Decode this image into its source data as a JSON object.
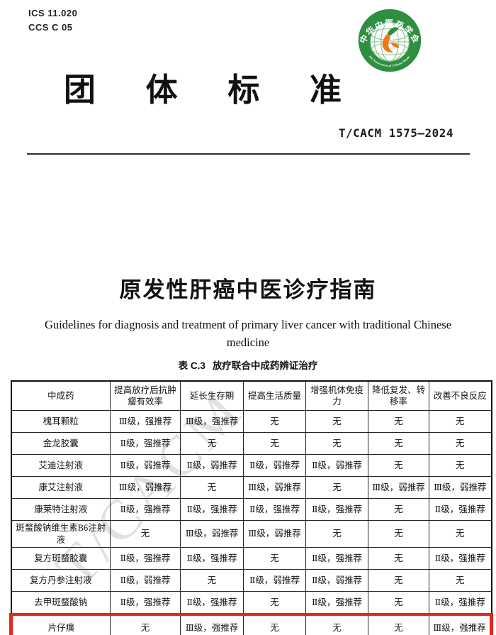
{
  "page": {
    "ics": "ICS 11.020",
    "ccs": "CCS C 05",
    "org_title_chars": [
      "团",
      "体",
      "标",
      "准"
    ],
    "standard_number": "T/CACM 1575—2024",
    "doc_title": "原发性肝癌中医诊疗指南",
    "doc_title_en_line1": "Guidelines for diagnosis and treatment of primary liver cancer with traditional Chinese",
    "doc_title_en_line2": "medicine",
    "watermark": "T/CACM"
  },
  "logo": {
    "org_name_cn": "中华中医药学会",
    "org_name_en": "China Association of Chinese Medicine",
    "green": "#2e8f40",
    "dark_green": "#0a5a23",
    "orange": "#f07818",
    "grid_green": "#8cc79a"
  },
  "table": {
    "caption_label": "表 C.3",
    "caption_title": "放疗联合中成药辨证治疗",
    "highlight_color": "#e4261c",
    "columns": [
      "中成药",
      "提高放疗后抗肿瘤有效率",
      "延长生存期",
      "提高生活质量",
      "增强机体免疫力",
      "降低复发、转移率",
      "改善不良反应"
    ],
    "rows": [
      {
        "name": "槐耳颗粒",
        "cells": [
          "Ⅲ级，强推荐",
          "Ⅲ级，强推荐",
          "无",
          "无",
          "无",
          "无"
        ],
        "highlight": false,
        "tall": false
      },
      {
        "name": "金龙胶囊",
        "cells": [
          "Ⅱ级，强推荐",
          "无",
          "无",
          "无",
          "无",
          "无"
        ],
        "highlight": false,
        "tall": false
      },
      {
        "name": "艾迪注射液",
        "cells": [
          "Ⅱ级，弱推荐",
          "Ⅱ级，弱推荐",
          "Ⅱ级，弱推荐",
          "Ⅱ级，弱推荐",
          "无",
          "无"
        ],
        "highlight": false,
        "tall": false
      },
      {
        "name": "康艾注射液",
        "cells": [
          "Ⅲ级，弱推荐",
          "无",
          "Ⅲ级，弱推荐",
          "无",
          "Ⅲ级，弱推荐",
          "Ⅲ级，弱推荐"
        ],
        "highlight": false,
        "tall": false
      },
      {
        "name": "康莱特注射液",
        "cells": [
          "Ⅱ级，强推荐",
          "Ⅱ级，强推荐",
          "Ⅱ级，强推荐",
          "Ⅱ级，强推荐",
          "无",
          "Ⅱ级，强推荐"
        ],
        "highlight": false,
        "tall": false
      },
      {
        "name": "斑蝥酸钠维生素B6注射液",
        "cells": [
          "无",
          "Ⅲ级，弱推荐",
          "Ⅲ级，弱推荐",
          "无",
          "无",
          "无"
        ],
        "highlight": false,
        "tall": true
      },
      {
        "name": "复方斑蝥胶囊",
        "cells": [
          "Ⅱ级，强推荐",
          "Ⅱ级，强推荐",
          "无",
          "Ⅱ级，强推荐",
          "无",
          "Ⅱ级，强推荐"
        ],
        "highlight": false,
        "tall": false
      },
      {
        "name": "复方丹参注射液",
        "cells": [
          "Ⅱ级，弱推荐",
          "无",
          "Ⅱ级，弱推荐",
          "Ⅱ级，弱推荐",
          "无",
          "无"
        ],
        "highlight": false,
        "tall": false
      },
      {
        "name": "去甲斑蝥酸钠",
        "cells": [
          "Ⅱ级，强推荐",
          "Ⅱ级，强推荐",
          "无",
          "Ⅱ级，强推荐",
          "无",
          "Ⅱ级，强推荐"
        ],
        "highlight": false,
        "tall": false
      },
      {
        "name": "片仔癀",
        "cells": [
          "无",
          "Ⅲ级，强推荐",
          "无",
          "无",
          "无",
          "Ⅲ级，强推荐"
        ],
        "highlight": true,
        "tall": false
      }
    ]
  }
}
